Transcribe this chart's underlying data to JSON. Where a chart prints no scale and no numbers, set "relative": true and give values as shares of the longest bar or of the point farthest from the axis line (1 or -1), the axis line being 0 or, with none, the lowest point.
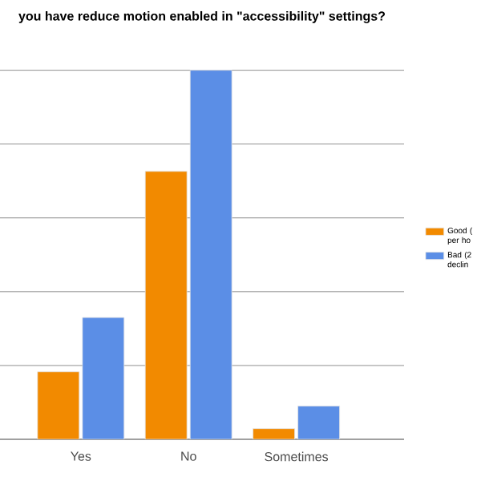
{
  "chart_data": {
    "type": "bar",
    "title": "you have reduce motion enabled in \"accessibility\" settings?",
    "categories": [
      "Yes",
      "No",
      "Sometimes"
    ],
    "relative": true,
    "grid": "y",
    "legend": "right",
    "series": [
      {
        "name": "Good ( per ho",
        "color": "#f28a00",
        "values": [
          0.183,
          0.726,
          0.029
        ]
      },
      {
        "name": "Bad (2 declin",
        "color": "#5b8ee6",
        "values": [
          0.33,
          1,
          0.09
        ]
      }
    ]
  }
}
